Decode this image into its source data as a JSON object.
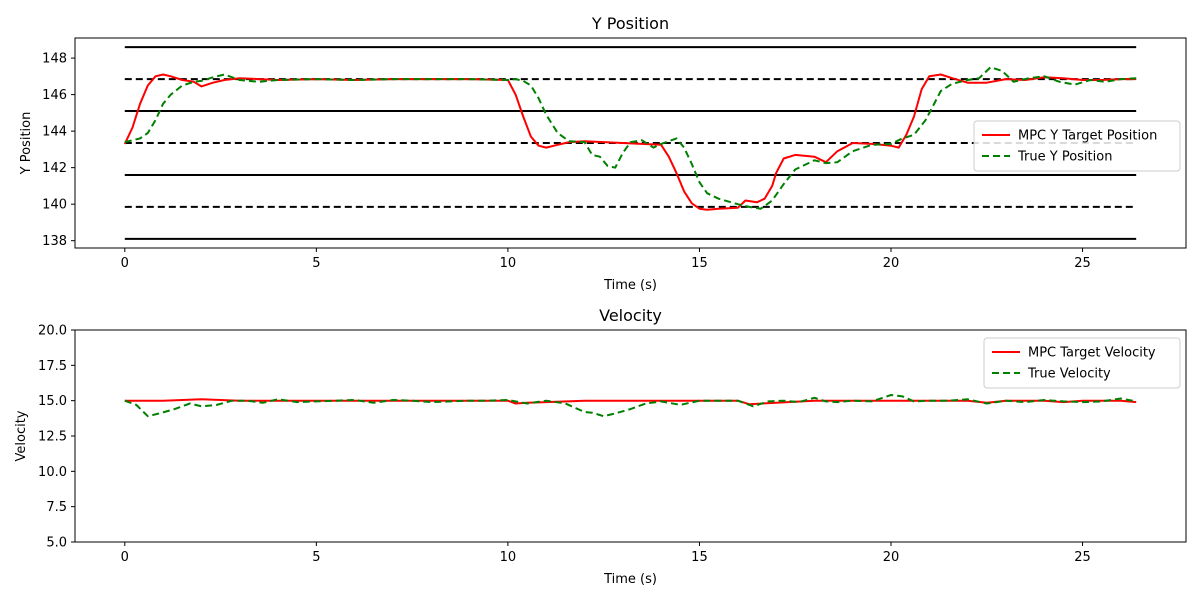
{
  "chart_data": [
    {
      "type": "line",
      "title": "Y Position",
      "xlabel": "Time (s)",
      "ylabel": "Y Position",
      "xlim": [
        -1.3,
        27.7
      ],
      "ylim": [
        137.6,
        149.1
      ],
      "xticks": [
        0,
        5,
        10,
        15,
        20,
        25
      ],
      "yticks": [
        138,
        140,
        142,
        144,
        146,
        148
      ],
      "grid": false,
      "legend_position": "center-right",
      "lane_lines": {
        "solid": [
          138.1,
          141.6,
          145.1,
          148.6
        ],
        "dashed": [
          139.85,
          143.35,
          146.85
        ],
        "x_range": [
          0,
          26.4
        ]
      },
      "series": [
        {
          "name": "MPC Y Target Position",
          "color": "#ff0000",
          "dash": "solid",
          "x": [
            0,
            0.2,
            0.4,
            0.6,
            0.8,
            1.0,
            1.2,
            1.5,
            1.8,
            2.0,
            2.3,
            2.6,
            3.0,
            3.5,
            4.0,
            5.0,
            6.0,
            7.0,
            8.0,
            9.0,
            10.0,
            10.2,
            10.4,
            10.6,
            10.8,
            11.0,
            11.3,
            11.6,
            12.0,
            12.5,
            13.0,
            13.5,
            14.0,
            14.2,
            14.4,
            14.6,
            14.8,
            15.0,
            15.2,
            15.5,
            16.0,
            16.2,
            16.5,
            16.7,
            16.9,
            17.0,
            17.2,
            17.5,
            18.0,
            18.3,
            18.6,
            19.0,
            19.5,
            20.0,
            20.2,
            20.4,
            20.6,
            20.8,
            21.0,
            21.3,
            21.6,
            22.0,
            22.5,
            23.0,
            23.5,
            24.0,
            24.5,
            25.0,
            25.5,
            26.0,
            26.4
          ],
          "y": [
            143.3,
            144.2,
            145.5,
            146.5,
            147.0,
            147.1,
            147.0,
            146.8,
            146.7,
            146.45,
            146.65,
            146.8,
            146.9,
            146.85,
            146.8,
            146.85,
            146.8,
            146.85,
            146.85,
            146.85,
            146.8,
            146.0,
            144.8,
            143.7,
            143.2,
            143.1,
            143.25,
            143.4,
            143.45,
            143.4,
            143.35,
            143.3,
            143.25,
            142.6,
            141.7,
            140.7,
            140.05,
            139.75,
            139.7,
            139.75,
            139.8,
            140.2,
            140.1,
            140.3,
            141.0,
            141.7,
            142.5,
            142.7,
            142.6,
            142.3,
            142.9,
            143.35,
            143.3,
            143.2,
            143.1,
            143.8,
            144.8,
            146.3,
            147.0,
            147.1,
            146.9,
            146.65,
            146.65,
            146.85,
            146.8,
            146.95,
            146.9,
            146.8,
            146.8,
            146.85,
            146.85
          ]
        },
        {
          "name": "True Y Position",
          "color": "#008000",
          "dash": "dashed",
          "x": [
            0,
            0.2,
            0.4,
            0.6,
            0.8,
            1.0,
            1.2,
            1.5,
            1.8,
            2.0,
            2.3,
            2.6,
            3.0,
            3.5,
            4.0,
            5.0,
            6.0,
            7.0,
            8.0,
            9.0,
            10.0,
            10.2,
            10.4,
            10.6,
            10.8,
            11.0,
            11.3,
            11.6,
            12.0,
            12.2,
            12.4,
            12.6,
            12.8,
            13.0,
            13.2,
            13.5,
            13.8,
            14.0,
            14.2,
            14.4,
            14.6,
            14.8,
            15.0,
            15.2,
            15.5,
            16.0,
            16.3,
            16.6,
            16.9,
            17.2,
            17.5,
            18.0,
            18.3,
            18.6,
            19.0,
            19.5,
            20.0,
            20.3,
            20.6,
            20.9,
            21.1,
            21.3,
            21.6,
            22.0,
            22.3,
            22.6,
            22.9,
            23.2,
            23.6,
            24.0,
            24.4,
            24.8,
            25.2,
            25.6,
            26.0,
            26.4
          ],
          "y": [
            143.4,
            143.5,
            143.6,
            143.9,
            144.6,
            145.5,
            146.0,
            146.5,
            146.7,
            146.75,
            146.95,
            147.1,
            146.8,
            146.7,
            146.8,
            146.85,
            146.8,
            146.85,
            146.85,
            146.85,
            146.8,
            146.85,
            146.75,
            146.5,
            145.8,
            144.9,
            143.9,
            143.45,
            143.4,
            142.7,
            142.6,
            142.1,
            142.0,
            142.8,
            143.4,
            143.5,
            143.1,
            143.3,
            143.45,
            143.6,
            143.1,
            142.2,
            141.2,
            140.6,
            140.3,
            140.0,
            139.85,
            139.75,
            140.2,
            141.1,
            141.9,
            142.4,
            142.25,
            142.3,
            142.9,
            143.25,
            143.3,
            143.6,
            143.8,
            144.6,
            145.4,
            146.2,
            146.6,
            146.8,
            146.9,
            147.5,
            147.3,
            146.7,
            146.9,
            147.0,
            146.7,
            146.55,
            146.8,
            146.7,
            146.85,
            146.9
          ]
        }
      ]
    },
    {
      "type": "line",
      "title": "Velocity",
      "xlabel": "Time (s)",
      "ylabel": "Velocity",
      "xlim": [
        -1.3,
        27.7
      ],
      "ylim": [
        5.0,
        20.0
      ],
      "xticks": [
        0,
        5,
        10,
        15,
        20,
        25
      ],
      "yticks": [
        5.0,
        7.5,
        10.0,
        12.5,
        15.0,
        17.5,
        20.0
      ],
      "grid": false,
      "legend_position": "top-right",
      "series": [
        {
          "name": "MPC Target Velocity",
          "color": "#ff0000",
          "dash": "solid",
          "x": [
            0,
            1,
            2,
            2.5,
            3,
            4,
            5,
            6,
            7,
            8,
            9,
            10,
            10.2,
            10.5,
            11,
            12,
            13,
            14,
            15,
            16,
            16.3,
            17,
            18,
            19,
            20,
            21,
            22,
            22.5,
            23,
            24,
            24.5,
            25,
            26,
            26.4
          ],
          "y": [
            15.0,
            15.0,
            15.1,
            15.05,
            15.0,
            15.0,
            15.0,
            15.0,
            15.0,
            15.0,
            15.0,
            15.0,
            14.8,
            14.85,
            14.9,
            15.0,
            15.0,
            15.0,
            15.0,
            15.0,
            14.75,
            14.85,
            15.0,
            15.0,
            15.0,
            15.0,
            15.0,
            14.85,
            15.0,
            15.0,
            14.9,
            15.0,
            15.0,
            14.9
          ]
        },
        {
          "name": "True Velocity",
          "color": "#008000",
          "dash": "dashed",
          "x": [
            0,
            0.3,
            0.6,
            0.9,
            1.3,
            1.7,
            2.0,
            2.4,
            2.8,
            3.2,
            3.6,
            4.0,
            4.5,
            5.0,
            5.5,
            6.0,
            6.5,
            7.0,
            7.5,
            8.0,
            8.5,
            9.0,
            9.5,
            10.0,
            10.5,
            11.0,
            11.5,
            12.0,
            12.2,
            12.5,
            12.8,
            13.2,
            13.6,
            14.0,
            14.5,
            15.0,
            15.5,
            16.0,
            16.4,
            16.8,
            17.2,
            17.6,
            18.0,
            18.3,
            18.6,
            19.0,
            19.5,
            20.0,
            20.3,
            20.6,
            21.0,
            21.5,
            22.0,
            22.5,
            23.0,
            23.5,
            24.0,
            24.5,
            25.0,
            25.5,
            26.0,
            26.4
          ],
          "y": [
            15.0,
            14.7,
            13.9,
            14.1,
            14.4,
            14.8,
            14.6,
            14.7,
            15.0,
            15.0,
            14.85,
            15.1,
            14.9,
            14.95,
            15.0,
            15.05,
            14.85,
            15.05,
            15.0,
            14.9,
            14.95,
            15.0,
            15.0,
            15.05,
            14.8,
            15.0,
            14.8,
            14.2,
            14.15,
            13.9,
            14.1,
            14.4,
            14.8,
            14.95,
            14.7,
            15.0,
            15.0,
            15.0,
            14.6,
            14.95,
            15.0,
            14.9,
            15.2,
            14.95,
            14.9,
            15.0,
            14.95,
            15.4,
            15.3,
            14.95,
            15.0,
            15.0,
            15.1,
            14.8,
            15.0,
            14.9,
            15.05,
            14.95,
            14.9,
            14.95,
            15.15,
            14.95
          ]
        }
      ]
    }
  ]
}
